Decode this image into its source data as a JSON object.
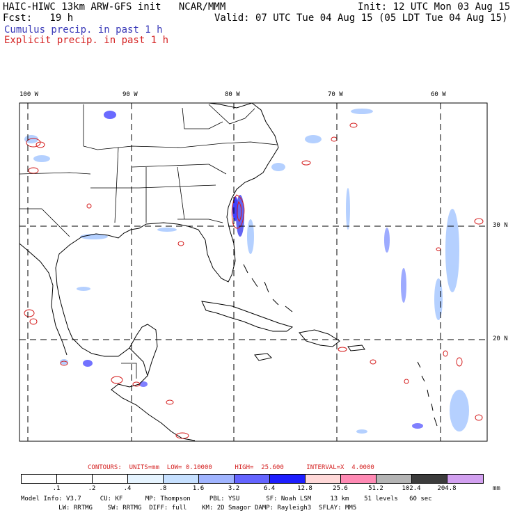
{
  "header": {
    "line1_left": "HAIC-HIWC 13km ARW-GFS init   NCAR/MMM",
    "line1_right": "Init: 12 UTC Mon 03 Aug 15",
    "line2_left": "Fcst:   19 h",
    "line2_right": "Valid: 07 UTC Tue 04 Aug 15 (05 LDT Tue 04 Aug 15)",
    "legend_cumulus": "Cumulus precip. in past 1 h",
    "legend_explicit": "Explicit precip. in past 1 h"
  },
  "map": {
    "lon_labels": [
      "100 W",
      "90 W",
      "80 W",
      "70 W",
      "60 W"
    ],
    "lat_labels": [
      "30 N",
      "20 N"
    ]
  },
  "contours_line": "CONTOURS:  UNITS=mm  LOW= 0.10000      HIGH=  25.600      INTERVAL=X  4.0000",
  "colorbar": {
    "unit": "mm",
    "labels": [
      ".1",
      ".2",
      ".4",
      ".8",
      "1.6",
      "3.2",
      "6.4",
      "12.8",
      "25.6",
      "51.2",
      "102.4",
      "204.8"
    ],
    "colors": [
      "#ffffff",
      "#ffffff",
      "#ffffff",
      "#e6f4ff",
      "#c6e0ff",
      "#a0b4ff",
      "#6464ff",
      "#1e1eff",
      "#ffd8d8",
      "#ff8ab4",
      "#b4b4b4",
      "#3c3c3c",
      "#d2a0f0"
    ]
  },
  "footer": {
    "line1": "Model Info: V3.7     CU: KF      MP: Thompson     PBL: YSU       SF: Noah LSM     13 km    51 levels   60 sec",
    "line2": "          LW: RRTMG    SW: RRTMG  DIFF: full    KM: 2D Smagor DAMP: Rayleigh3  SFLAY: MM5"
  }
}
